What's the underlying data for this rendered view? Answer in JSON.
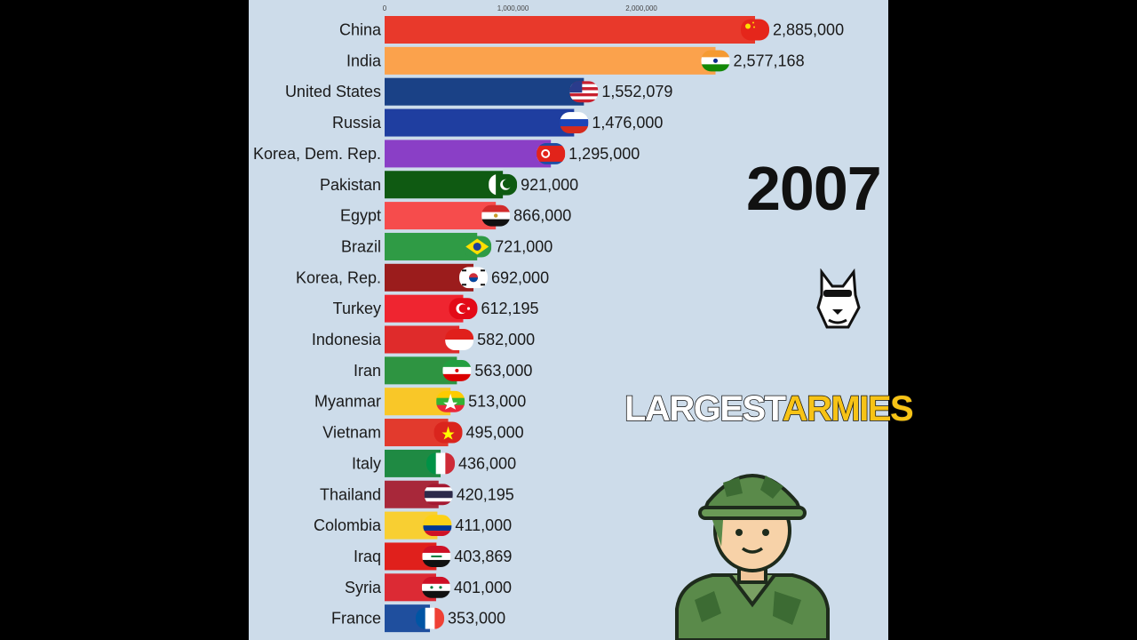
{
  "colors": {
    "background": "#cddcea",
    "outer": "#000000",
    "headline_white": "#ffffff",
    "headline_yellow": "#f7c316"
  },
  "year": "2007",
  "headline": {
    "word1": "LARGEST",
    "word2": "ARMIES"
  },
  "logo_icon": "wolf-sunglasses-logo-icon",
  "soldier_icon": "soldier-illustration-icon",
  "chart_data": {
    "type": "bar",
    "orientation": "horizontal",
    "title": "",
    "xlabel": "",
    "ylabel": "",
    "xlim": [
      0,
      2885000
    ],
    "ticks": [
      {
        "value": 0,
        "label": "0"
      },
      {
        "value": 1000000,
        "label": "1,000,000"
      },
      {
        "value": 2000000,
        "label": "2,000,000"
      }
    ],
    "grid": false,
    "legend": "none",
    "categories": [
      "China",
      "India",
      "United States",
      "Russia",
      "Korea, Dem. Rep.",
      "Pakistan",
      "Egypt",
      "Brazil",
      "Korea, Rep.",
      "Turkey",
      "Indonesia",
      "Iran",
      "Myanmar",
      "Vietnam",
      "Italy",
      "Thailand",
      "Colombia",
      "Iraq",
      "Syria",
      "France"
    ],
    "values": [
      2885000,
      2577168,
      1552079,
      1476000,
      1295000,
      921000,
      866000,
      721000,
      692000,
      612195,
      582000,
      563000,
      513000,
      495000,
      436000,
      420195,
      411000,
      403869,
      401000,
      353000
    ],
    "value_labels": [
      "2,885,000",
      "2,577,168",
      "1,552,079",
      "1,476,000",
      "1,295,000",
      "921,000",
      "866,000",
      "721,000",
      "692,000",
      "612,195",
      "582,000",
      "563,000",
      "513,000",
      "495,000",
      "436,000",
      "420,195",
      "411,000",
      "403,869",
      "401,000",
      "353,000"
    ],
    "bar_colors": [
      "#e8392b",
      "#fba24c",
      "#1a4186",
      "#1f3ea0",
      "#8a3fc6",
      "#0f5a12",
      "#f64c4c",
      "#2f9b45",
      "#9b1c1c",
      "#ef2530",
      "#df2b2b",
      "#2e9441",
      "#f9c728",
      "#e23a2d",
      "#1f8a43",
      "#a8283a",
      "#f8cf32",
      "#e0201c",
      "#dc2a34",
      "#1f4f9e"
    ],
    "flags": [
      "china-flag-icon",
      "india-flag-icon",
      "usa-flag-icon",
      "russia-flag-icon",
      "north-korea-flag-icon",
      "pakistan-flag-icon",
      "egypt-flag-icon",
      "brazil-flag-icon",
      "south-korea-flag-icon",
      "turkey-flag-icon",
      "indonesia-flag-icon",
      "iran-flag-icon",
      "myanmar-flag-icon",
      "vietnam-flag-icon",
      "italy-flag-icon",
      "thailand-flag-icon",
      "colombia-flag-icon",
      "iraq-flag-icon",
      "syria-flag-icon",
      "france-flag-icon"
    ]
  }
}
